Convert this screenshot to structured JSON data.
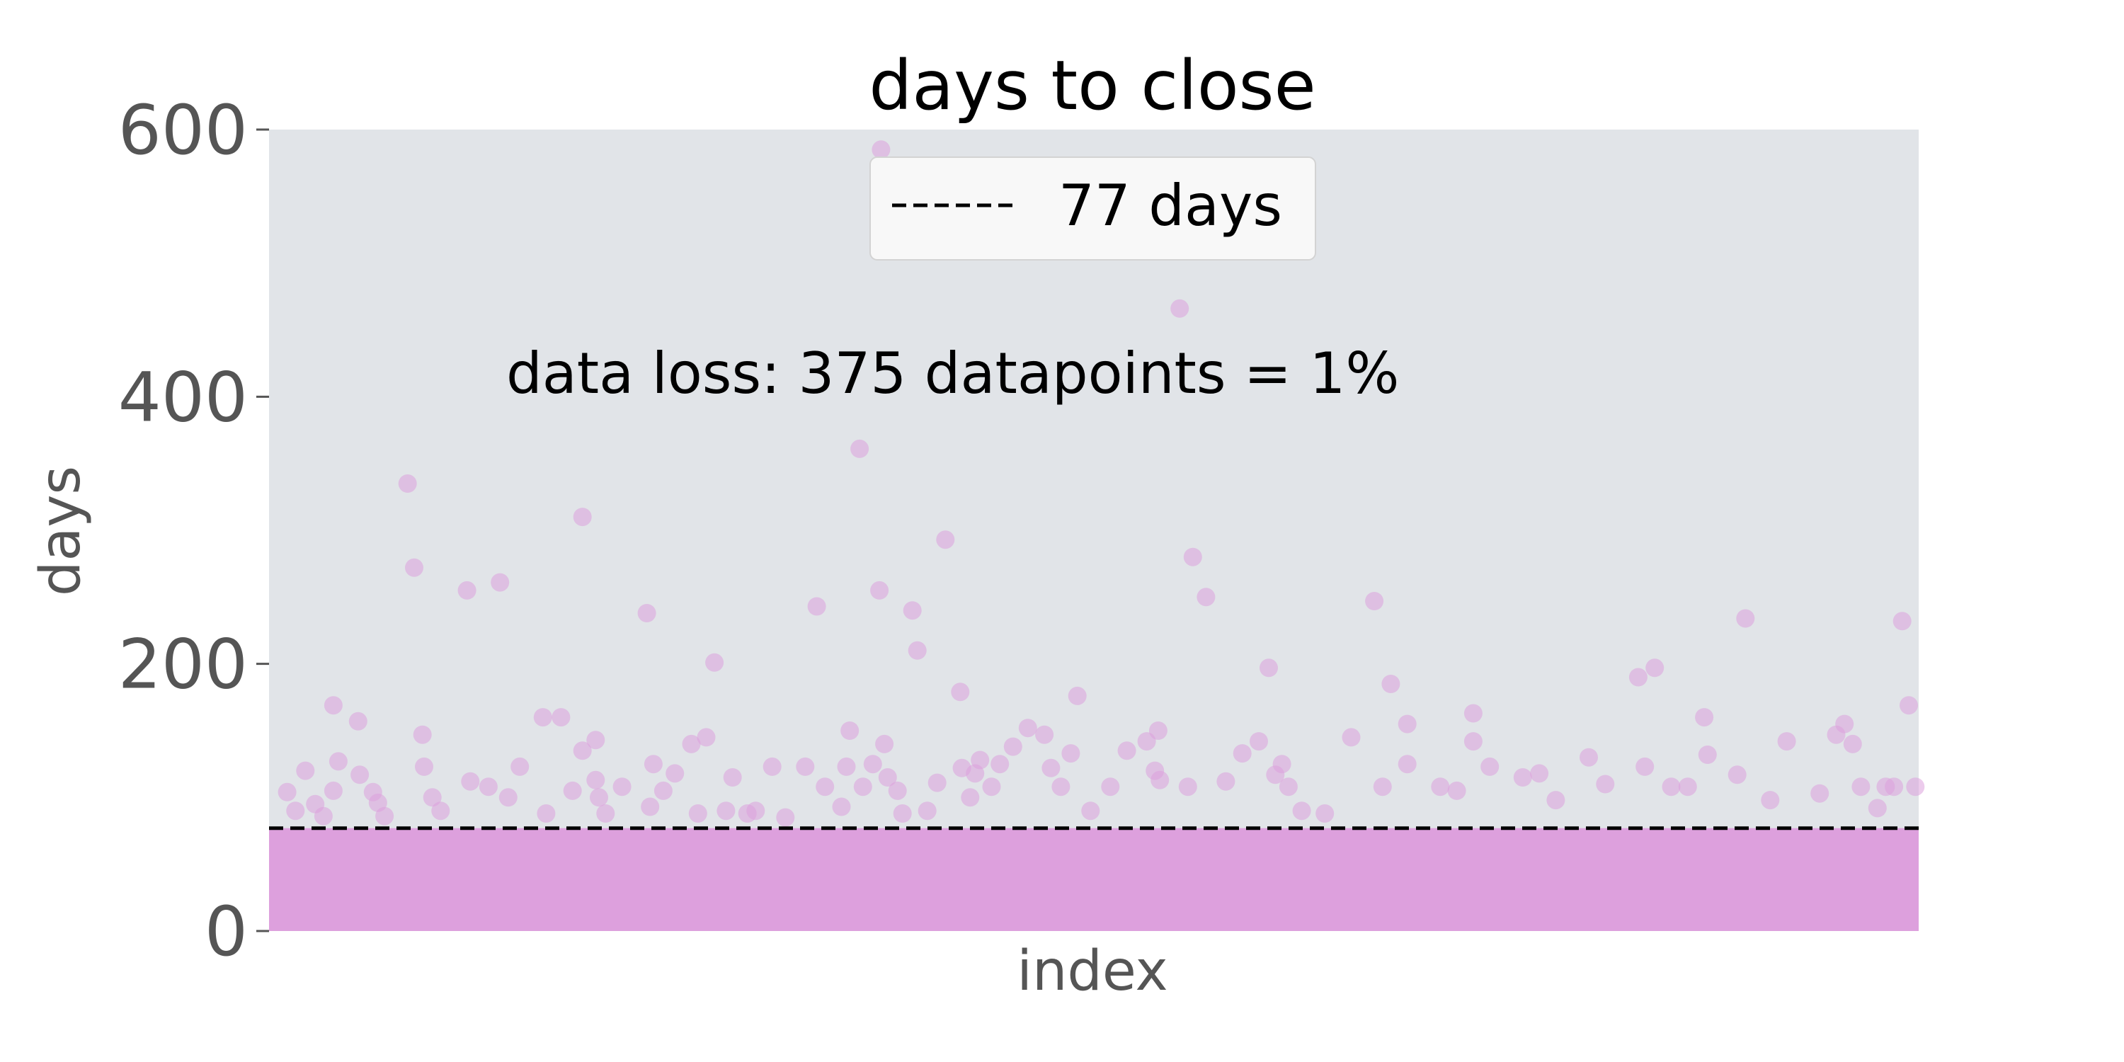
{
  "chart_data": {
    "type": "scatter",
    "title": "days to close",
    "xlabel": "index",
    "ylabel": "days",
    "ylim": [
      0,
      600
    ],
    "y_ticks": [
      0,
      200,
      400,
      600
    ],
    "x_ticks_shown": false,
    "grid": false,
    "background_color": "#e1e4e8",
    "point_color": "#dda0dd",
    "point_alpha": 0.55,
    "dense_band": {
      "from": 0,
      "to": 77,
      "color": "#dda0dd"
    },
    "reference_line": {
      "y": 77,
      "style": "dashed",
      "color": "#000000",
      "label": "77 days"
    },
    "legend": {
      "position": "top-center",
      "entries": [
        "77 days"
      ]
    },
    "annotation": "data loss: 375 datapoints = 1%",
    "outlier_points": [
      {
        "x": 0.011,
        "y": 104
      },
      {
        "x": 0.016,
        "y": 90
      },
      {
        "x": 0.022,
        "y": 120
      },
      {
        "x": 0.028,
        "y": 95
      },
      {
        "x": 0.033,
        "y": 86
      },
      {
        "x": 0.039,
        "y": 105
      },
      {
        "x": 0.039,
        "y": 169
      },
      {
        "x": 0.042,
        "y": 127
      },
      {
        "x": 0.054,
        "y": 157
      },
      {
        "x": 0.055,
        "y": 117
      },
      {
        "x": 0.063,
        "y": 104
      },
      {
        "x": 0.066,
        "y": 96
      },
      {
        "x": 0.07,
        "y": 86
      },
      {
        "x": 0.084,
        "y": 335
      },
      {
        "x": 0.088,
        "y": 272
      },
      {
        "x": 0.093,
        "y": 147
      },
      {
        "x": 0.094,
        "y": 123
      },
      {
        "x": 0.099,
        "y": 100
      },
      {
        "x": 0.104,
        "y": 90
      },
      {
        "x": 0.12,
        "y": 255
      },
      {
        "x": 0.122,
        "y": 112
      },
      {
        "x": 0.133,
        "y": 108
      },
      {
        "x": 0.14,
        "y": 261
      },
      {
        "x": 0.145,
        "y": 100
      },
      {
        "x": 0.152,
        "y": 123
      },
      {
        "x": 0.166,
        "y": 160
      },
      {
        "x": 0.168,
        "y": 88
      },
      {
        "x": 0.177,
        "y": 160
      },
      {
        "x": 0.184,
        "y": 105
      },
      {
        "x": 0.19,
        "y": 135
      },
      {
        "x": 0.19,
        "y": 310
      },
      {
        "x": 0.198,
        "y": 113
      },
      {
        "x": 0.2,
        "y": 100
      },
      {
        "x": 0.198,
        "y": 143
      },
      {
        "x": 0.204,
        "y": 88
      },
      {
        "x": 0.214,
        "y": 108
      },
      {
        "x": 0.229,
        "y": 238
      },
      {
        "x": 0.231,
        "y": 93
      },
      {
        "x": 0.233,
        "y": 125
      },
      {
        "x": 0.239,
        "y": 105
      },
      {
        "x": 0.246,
        "y": 118
      },
      {
        "x": 0.256,
        "y": 140
      },
      {
        "x": 0.26,
        "y": 88
      },
      {
        "x": 0.265,
        "y": 145
      },
      {
        "x": 0.27,
        "y": 201
      },
      {
        "x": 0.277,
        "y": 90
      },
      {
        "x": 0.281,
        "y": 115
      },
      {
        "x": 0.29,
        "y": 88
      },
      {
        "x": 0.295,
        "y": 90
      },
      {
        "x": 0.305,
        "y": 123
      },
      {
        "x": 0.313,
        "y": 85
      },
      {
        "x": 0.325,
        "y": 123
      },
      {
        "x": 0.332,
        "y": 243
      },
      {
        "x": 0.337,
        "y": 108
      },
      {
        "x": 0.347,
        "y": 93
      },
      {
        "x": 0.35,
        "y": 123
      },
      {
        "x": 0.352,
        "y": 150
      },
      {
        "x": 0.358,
        "y": 361
      },
      {
        "x": 0.36,
        "y": 108
      },
      {
        "x": 0.366,
        "y": 125
      },
      {
        "x": 0.37,
        "y": 255
      },
      {
        "x": 0.371,
        "y": 585
      },
      {
        "x": 0.373,
        "y": 140
      },
      {
        "x": 0.375,
        "y": 115
      },
      {
        "x": 0.381,
        "y": 105
      },
      {
        "x": 0.384,
        "y": 88
      },
      {
        "x": 0.39,
        "y": 240
      },
      {
        "x": 0.393,
        "y": 210
      },
      {
        "x": 0.399,
        "y": 90
      },
      {
        "x": 0.405,
        "y": 111
      },
      {
        "x": 0.41,
        "y": 293
      },
      {
        "x": 0.419,
        "y": 179
      },
      {
        "x": 0.42,
        "y": 122
      },
      {
        "x": 0.425,
        "y": 100
      },
      {
        "x": 0.428,
        "y": 118
      },
      {
        "x": 0.431,
        "y": 128
      },
      {
        "x": 0.438,
        "y": 108
      },
      {
        "x": 0.443,
        "y": 125
      },
      {
        "x": 0.451,
        "y": 138
      },
      {
        "x": 0.46,
        "y": 152
      },
      {
        "x": 0.47,
        "y": 147
      },
      {
        "x": 0.474,
        "y": 122
      },
      {
        "x": 0.48,
        "y": 108
      },
      {
        "x": 0.486,
        "y": 133
      },
      {
        "x": 0.49,
        "y": 176
      },
      {
        "x": 0.498,
        "y": 90
      },
      {
        "x": 0.51,
        "y": 108
      },
      {
        "x": 0.52,
        "y": 135
      },
      {
        "x": 0.532,
        "y": 142
      },
      {
        "x": 0.537,
        "y": 120
      },
      {
        "x": 0.539,
        "y": 150
      },
      {
        "x": 0.54,
        "y": 113
      },
      {
        "x": 0.552,
        "y": 466
      },
      {
        "x": 0.557,
        "y": 108
      },
      {
        "x": 0.56,
        "y": 280
      },
      {
        "x": 0.568,
        "y": 250
      },
      {
        "x": 0.58,
        "y": 112
      },
      {
        "x": 0.59,
        "y": 133
      },
      {
        "x": 0.6,
        "y": 142
      },
      {
        "x": 0.606,
        "y": 197
      },
      {
        "x": 0.61,
        "y": 117
      },
      {
        "x": 0.614,
        "y": 125
      },
      {
        "x": 0.618,
        "y": 108
      },
      {
        "x": 0.626,
        "y": 90
      },
      {
        "x": 0.64,
        "y": 88
      },
      {
        "x": 0.656,
        "y": 145
      },
      {
        "x": 0.67,
        "y": 247
      },
      {
        "x": 0.675,
        "y": 108
      },
      {
        "x": 0.68,
        "y": 185
      },
      {
        "x": 0.69,
        "y": 155
      },
      {
        "x": 0.69,
        "y": 125
      },
      {
        "x": 0.71,
        "y": 108
      },
      {
        "x": 0.72,
        "y": 105
      },
      {
        "x": 0.73,
        "y": 142
      },
      {
        "x": 0.73,
        "y": 163
      },
      {
        "x": 0.74,
        "y": 123
      },
      {
        "x": 0.76,
        "y": 115
      },
      {
        "x": 0.77,
        "y": 118
      },
      {
        "x": 0.78,
        "y": 98
      },
      {
        "x": 0.8,
        "y": 130
      },
      {
        "x": 0.81,
        "y": 110
      },
      {
        "x": 0.83,
        "y": 190
      },
      {
        "x": 0.834,
        "y": 123
      },
      {
        "x": 0.84,
        "y": 197
      },
      {
        "x": 0.85,
        "y": 108
      },
      {
        "x": 0.86,
        "y": 108
      },
      {
        "x": 0.87,
        "y": 160
      },
      {
        "x": 0.872,
        "y": 132
      },
      {
        "x": 0.89,
        "y": 117
      },
      {
        "x": 0.895,
        "y": 234
      },
      {
        "x": 0.91,
        "y": 98
      },
      {
        "x": 0.92,
        "y": 142
      },
      {
        "x": 0.94,
        "y": 103
      },
      {
        "x": 0.95,
        "y": 147
      },
      {
        "x": 0.955,
        "y": 155
      },
      {
        "x": 0.96,
        "y": 140
      },
      {
        "x": 0.965,
        "y": 108
      },
      {
        "x": 0.975,
        "y": 92
      },
      {
        "x": 0.98,
        "y": 108
      },
      {
        "x": 0.985,
        "y": 108
      },
      {
        "x": 0.99,
        "y": 232
      },
      {
        "x": 0.994,
        "y": 169
      },
      {
        "x": 0.998,
        "y": 108
      }
    ]
  }
}
